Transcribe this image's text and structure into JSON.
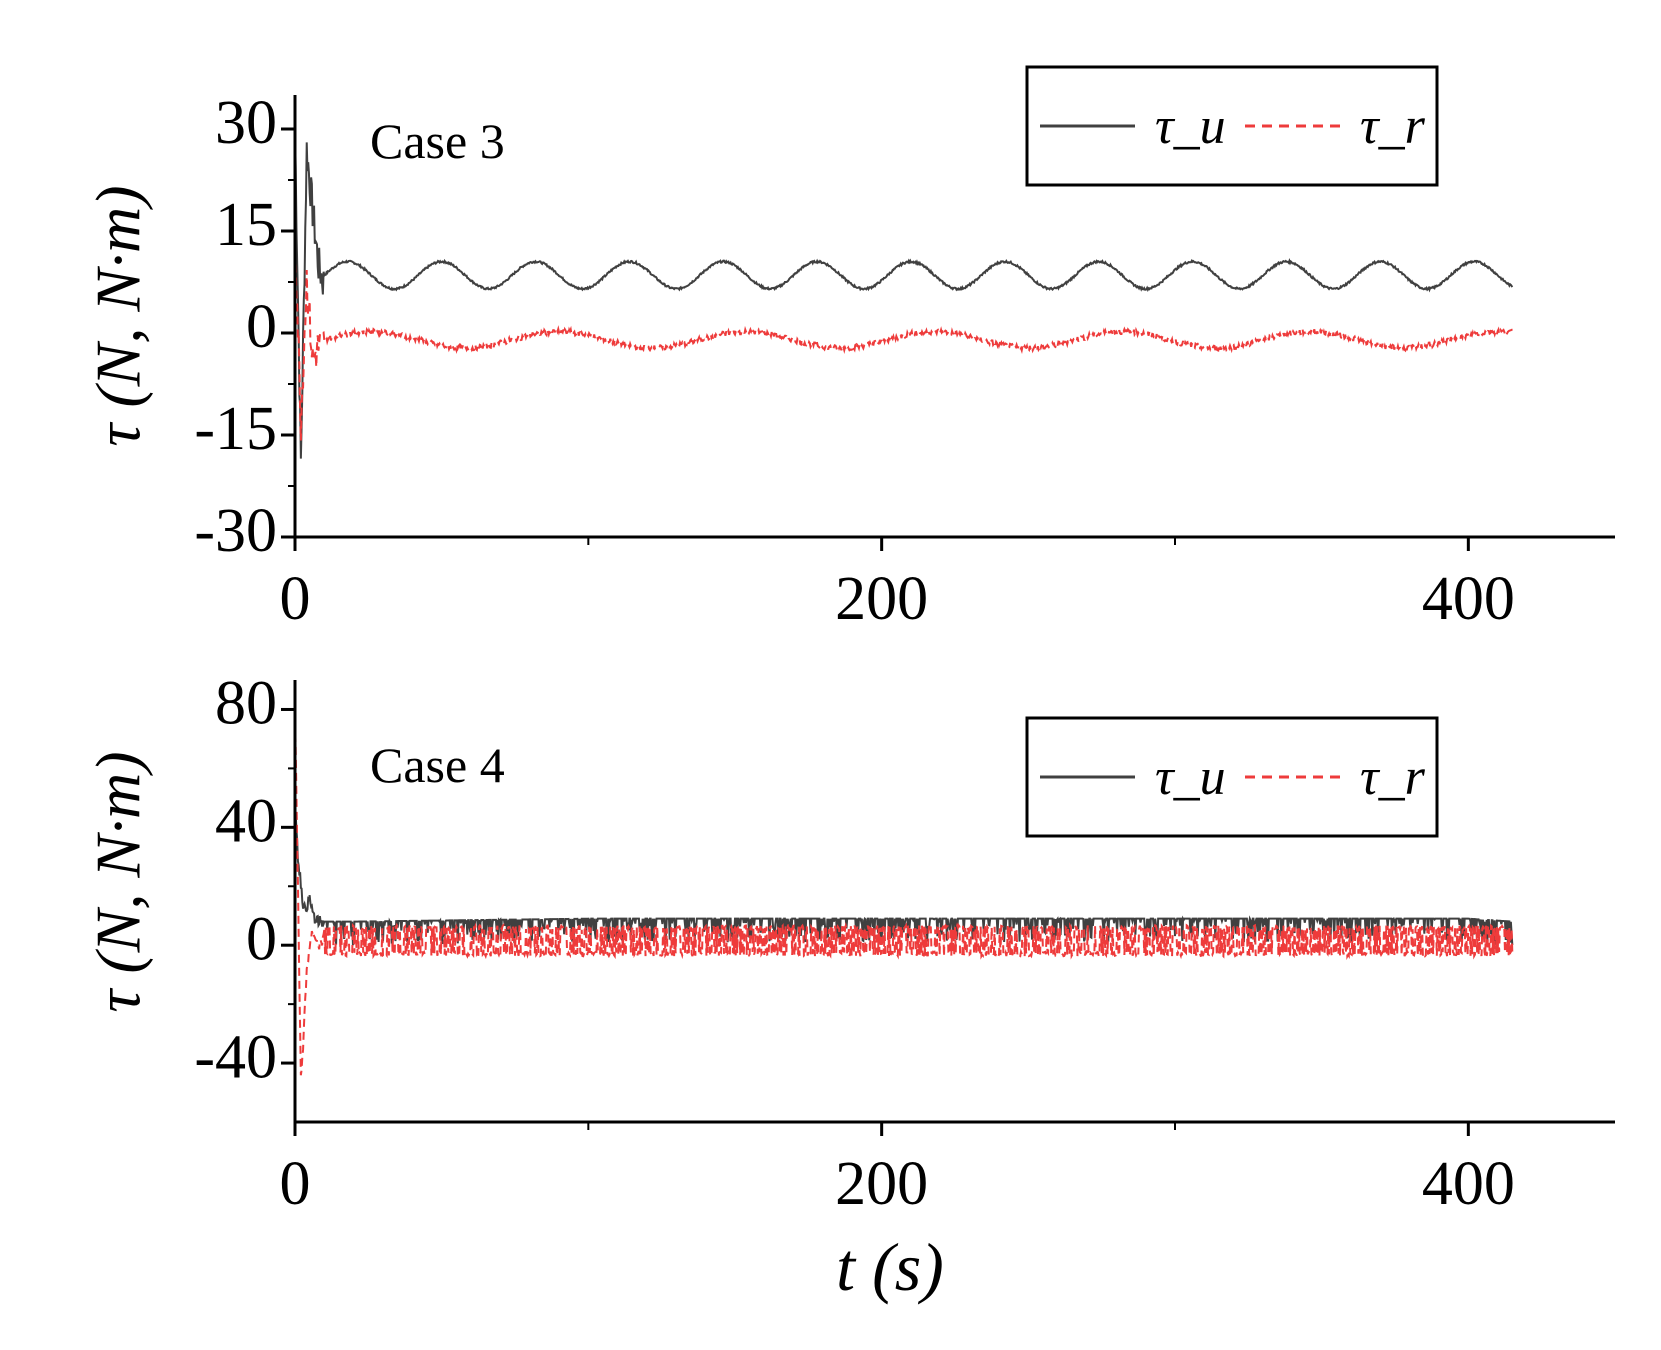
{
  "chart_data": [
    {
      "type": "line",
      "annotation": "Case 3",
      "ylabel": "τ (N, N·m)",
      "xlabel": "",
      "xlim": [
        0,
        450
      ],
      "ylim": [
        -30,
        35
      ],
      "xticks": [
        0,
        200,
        400
      ],
      "xtick_labels": [
        "0",
        "200",
        "400"
      ],
      "yticks": [
        -30,
        -15,
        0,
        15,
        30
      ],
      "ytick_labels": [
        "-30",
        "-15",
        "0",
        "15",
        "30"
      ],
      "legend": {
        "position": "top-right",
        "entries": [
          "τ_u",
          "τ_r"
        ]
      },
      "series": [
        {
          "name": "τ_u",
          "color": "#404040",
          "style": "solid",
          "x": [
            0,
            2,
            4,
            6,
            8,
            10,
            20,
            30,
            40,
            50,
            60,
            70,
            80,
            90,
            100,
            150,
            200,
            250,
            300,
            350,
            400,
            415
          ],
          "y": [
            30,
            -19,
            27,
            18,
            10,
            7,
            9,
            8,
            10,
            7,
            10,
            7,
            9,
            8,
            10,
            7,
            9,
            8,
            10,
            7,
            9,
            6.5
          ],
          "oscillation": {
            "mean": 8.5,
            "amplitude": 2,
            "period_s": 32
          }
        },
        {
          "name": "τ_r",
          "color": "#ee3b3b",
          "style": "dashed",
          "x": [
            0,
            2,
            4,
            6,
            8,
            10,
            20,
            40,
            60,
            80,
            100,
            150,
            200,
            250,
            300,
            350,
            400,
            415
          ],
          "y": [
            15,
            -13,
            8,
            -4,
            -2,
            -1.5,
            -2,
            0.5,
            -1,
            -2,
            -1,
            -1.5,
            -1,
            -1.5,
            -1,
            -1.2,
            -1.5,
            -1
          ],
          "oscillation": {
            "mean": -1,
            "amplitude": 1.2,
            "period_s": 64
          }
        }
      ]
    },
    {
      "type": "line",
      "annotation": "Case 4",
      "ylabel": "τ (N, N·m)",
      "xlabel": "t (s)",
      "xlim": [
        0,
        450
      ],
      "ylim": [
        -60,
        90
      ],
      "xticks": [
        0,
        200,
        400
      ],
      "xtick_labels": [
        "0",
        "200",
        "400"
      ],
      "yticks": [
        -40,
        0,
        40,
        80
      ],
      "ytick_labels": [
        "-40",
        "0",
        "40",
        "80"
      ],
      "legend": {
        "position": "top-right",
        "entries": [
          "τ_u",
          "τ_r"
        ]
      },
      "series": [
        {
          "name": "τ_u",
          "color": "#404040",
          "style": "solid",
          "x": [
            0,
            1,
            3,
            5,
            7,
            10,
            20,
            100,
            200,
            300,
            400,
            415
          ],
          "y": [
            50,
            30,
            12,
            15,
            8,
            8,
            8,
            9,
            9,
            9,
            9,
            8
          ],
          "band": [
            0,
            8
          ]
        },
        {
          "name": "τ_r",
          "color": "#ee3b3b",
          "style": "dashed",
          "x": [
            0,
            1,
            2,
            3,
            4,
            5,
            6,
            8,
            10,
            50,
            100,
            200,
            300,
            400,
            415
          ],
          "y": [
            80,
            20,
            -45,
            -30,
            -8,
            0,
            5,
            0,
            2,
            2,
            2,
            2,
            2,
            2,
            2
          ],
          "band": [
            -3,
            6
          ]
        }
      ]
    }
  ]
}
